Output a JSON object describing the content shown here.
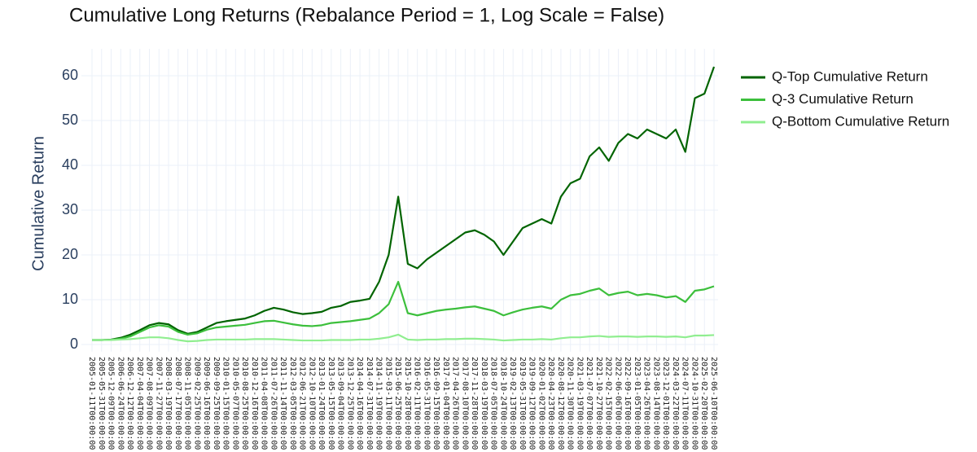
{
  "chart_data": {
    "type": "line",
    "title": "Cumulative Long Returns (Rebalance Period = 1, Log Scale = False)",
    "y_label": "Cumulative Return",
    "categories": [
      "2005-01-11T00:00:00",
      "2005-05-31T00:00:00",
      "2005-12-09T00:00:00",
      "2006-06-24T00:00:00",
      "2006-12-12T00:00:00",
      "2007-04-04T00:00:00",
      "2007-08-09T00:00:00",
      "2007-11-27T00:00:00",
      "2008-03-19T00:00:00",
      "2008-07-17T00:00:00",
      "2008-11-05T00:00:00",
      "2009-02-25T00:00:00",
      "2009-06-16T00:00:00",
      "2009-09-25T00:00:00",
      "2010-01-15T00:00:00",
      "2010-05-07T00:00:00",
      "2010-08-25T00:00:00",
      "2010-12-16T00:00:00",
      "2011-04-08T00:00:00",
      "2011-07-26T00:00:00",
      "2011-11-14T00:00:00",
      "2012-03-05T00:00:00",
      "2012-06-21T00:00:00",
      "2012-10-10T00:00:00",
      "2013-01-24T00:00:00",
      "2013-05-15T00:00:00",
      "2013-09-04T00:00:00",
      "2013-12-25T00:00:00",
      "2014-04-16T00:00:00",
      "2014-07-31T00:00:00",
      "2014-11-19T00:00:00",
      "2015-03-11T00:00:00",
      "2015-06-25T00:00:00",
      "2015-10-28T00:00:00",
      "2016-02-11T00:00:00",
      "2016-05-31T00:00:00",
      "2016-09-15T00:00:00",
      "2017-01-04T00:00:00",
      "2017-04-26T00:00:00",
      "2017-08-10T00:00:00",
      "2017-11-28T00:00:00",
      "2018-03-19T00:00:00",
      "2018-07-05T00:00:00",
      "2018-10-24T00:00:00",
      "2019-02-13T00:00:00",
      "2019-05-31T00:00:00",
      "2019-09-12T00:00:00",
      "2020-01-02T00:00:00",
      "2020-04-23T00:00:00",
      "2020-08-12T00:00:00",
      "2020-11-30T00:00:00",
      "2021-03-19T00:00:00",
      "2021-07-07T00:00:00",
      "2021-10-27T00:00:00",
      "2022-02-15T00:00:00",
      "2022-06-06T00:00:00",
      "2022-09-16T00:00:00",
      "2023-01-05T00:00:00",
      "2023-04-26T00:00:00",
      "2023-08-14T00:00:00",
      "2023-12-01T00:00:00",
      "2024-03-22T00:00:00",
      "2024-07-11T00:00:00",
      "2024-10-31T00:00:00",
      "2025-02-20T00:00:00",
      "2025-06-10T00:00:00"
    ],
    "series": [
      {
        "name": "Q-Top Cumulative Return",
        "color": "#006400",
        "values": [
          1,
          1,
          1.1,
          1.5,
          2.2,
          3.2,
          4.3,
          4.8,
          4.5,
          3.2,
          2.4,
          2.8,
          3.8,
          4.8,
          5.2,
          5.5,
          5.8,
          6.5,
          7.5,
          8.2,
          7.8,
          7.2,
          6.8,
          7.0,
          7.3,
          8.2,
          8.6,
          9.5,
          9.8,
          10.2,
          14,
          20,
          33,
          18,
          17,
          19,
          20.5,
          22,
          23.5,
          25,
          25.5,
          24.5,
          23,
          20,
          23,
          26,
          27,
          28,
          27,
          33,
          36,
          37,
          42,
          44,
          41,
          45,
          47,
          46,
          48,
          47,
          46,
          48,
          43,
          55,
          56,
          62
        ]
      },
      {
        "name": "Q-3 Cumulative Return",
        "color": "#3cbf3c",
        "values": [
          1,
          1,
          1.05,
          1.3,
          1.8,
          2.8,
          3.8,
          4.3,
          4,
          2.8,
          2.2,
          2.5,
          3.3,
          3.8,
          4,
          4.2,
          4.4,
          4.8,
          5.2,
          5.3,
          4.9,
          4.5,
          4.2,
          4.1,
          4.3,
          4.8,
          5,
          5.2,
          5.5,
          5.8,
          7,
          9,
          14,
          7,
          6.5,
          7,
          7.5,
          7.8,
          8,
          8.3,
          8.5,
          8,
          7.5,
          6.5,
          7.2,
          7.8,
          8.2,
          8.5,
          8,
          10,
          11,
          11.3,
          12,
          12.5,
          11,
          11.5,
          11.8,
          11,
          11.3,
          11,
          10.5,
          10.8,
          9.5,
          12,
          12.3,
          13
        ]
      },
      {
        "name": "Q-Bottom Cumulative Return",
        "color": "#90ee90",
        "values": [
          1,
          1,
          1,
          1.1,
          1.2,
          1.4,
          1.6,
          1.6,
          1.4,
          1,
          0.7,
          0.8,
          1,
          1.1,
          1.1,
          1.1,
          1.1,
          1.2,
          1.2,
          1.2,
          1.1,
          1,
          0.9,
          0.9,
          0.9,
          1,
          1,
          1,
          1.1,
          1.1,
          1.3,
          1.6,
          2.2,
          1.1,
          1,
          1.1,
          1.1,
          1.2,
          1.2,
          1.3,
          1.3,
          1.2,
          1.1,
          0.9,
          1,
          1.1,
          1.1,
          1.2,
          1.1,
          1.4,
          1.6,
          1.6,
          1.8,
          1.9,
          1.7,
          1.8,
          1.8,
          1.7,
          1.8,
          1.8,
          1.7,
          1.8,
          1.6,
          2,
          2,
          2.1
        ]
      }
    ],
    "ylim": [
      -1.6,
      66
    ],
    "yticks": [
      0,
      10,
      20,
      30,
      40,
      50,
      60
    ],
    "grid": true,
    "legend": "right"
  }
}
